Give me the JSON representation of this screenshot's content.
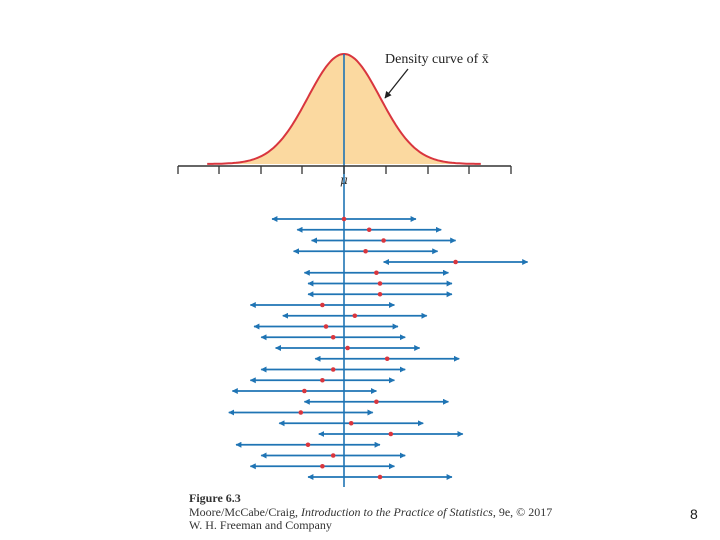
{
  "figure": {
    "density_label": "Density curve of x̄",
    "mu_label": "μ",
    "intervals": [
      {
        "center": 0.0
      },
      {
        "center": 0.7
      },
      {
        "center": 1.1
      },
      {
        "center": 0.6
      },
      {
        "center": 3.1
      },
      {
        "center": 0.9
      },
      {
        "center": 1.0
      },
      {
        "center": 1.0
      },
      {
        "center": -0.6
      },
      {
        "center": 0.3
      },
      {
        "center": -0.5
      },
      {
        "center": -0.3
      },
      {
        "center": 0.1
      },
      {
        "center": 1.2
      },
      {
        "center": -0.3
      },
      {
        "center": -0.6
      },
      {
        "center": -1.1
      },
      {
        "center": 0.9
      },
      {
        "center": -1.2
      },
      {
        "center": 0.2
      },
      {
        "center": 1.3
      },
      {
        "center": -1.0
      },
      {
        "center": -0.3
      },
      {
        "center": -0.6
      },
      {
        "center": 1.0
      }
    ],
    "interval_half_width": 2.0,
    "colors": {
      "curve": "#d9363e",
      "fill": "#fbd9a0",
      "interval": "#1f74b4",
      "point": "#d9363e",
      "axis": "#333333"
    }
  },
  "caption": {
    "figure_number": "Figure 6.3",
    "line2_prefix": "Moore/McCabe/Craig, ",
    "book_title": "Introduction to the Practice of Statistics",
    "line2_suffix": ", 9e, © 2017",
    "line3": "W. H. Freeman and Company"
  },
  "slide_number": "8"
}
